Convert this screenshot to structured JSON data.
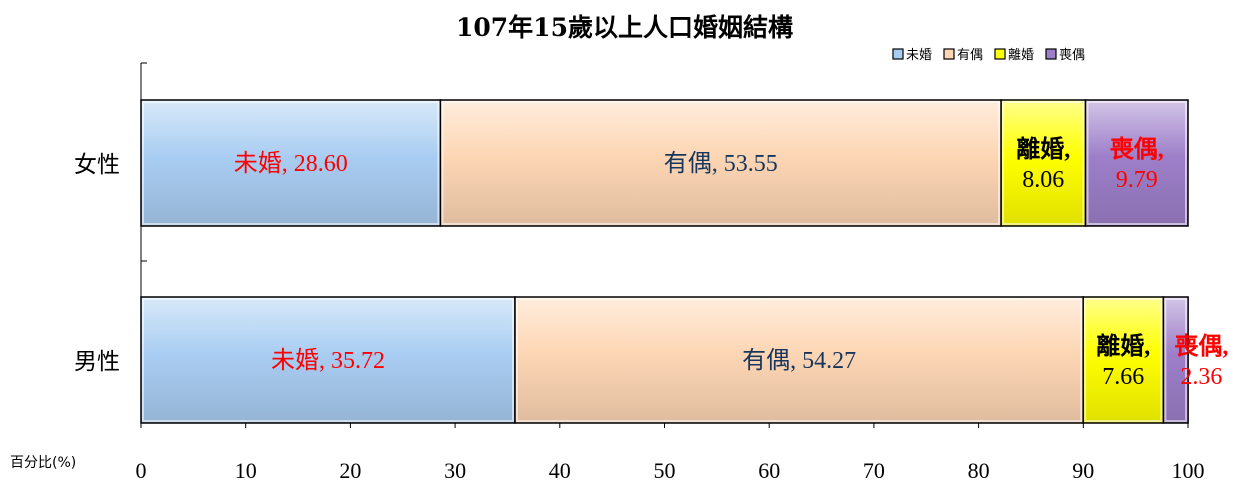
{
  "chart_data": {
    "type": "bar",
    "orientation": "horizontal",
    "stacked": true,
    "title": "107年15歲以上人口婚姻結構",
    "xlabel": "百分比(%)",
    "ylabel": "",
    "xlim": [
      0,
      100
    ],
    "xticks": [
      0,
      10,
      20,
      30,
      40,
      50,
      60,
      70,
      80,
      90,
      100
    ],
    "categories": [
      "女性",
      "男性"
    ],
    "series": [
      {
        "name": "未婚",
        "values": [
          28.6,
          35.72
        ],
        "color": "#a9cdf2",
        "label_color": "#ff0000"
      },
      {
        "name": "有偶",
        "values": [
          53.55,
          54.27
        ],
        "color": "#fdd6b4",
        "label_color": "#17365d"
      },
      {
        "name": "離婚",
        "values": [
          8.06,
          7.66
        ],
        "color": "#ffff00",
        "label_color": "#000000"
      },
      {
        "name": "喪偶",
        "values": [
          9.79,
          2.36
        ],
        "color": "#9d7fc9",
        "label_color": "#ff0000"
      }
    ],
    "data_labels": [
      [
        "未婚, 28.60",
        "有偶, 53.55",
        "離婚,|8.06",
        "喪偶,|9.79"
      ],
      [
        "未婚, 35.72",
        "有偶, 54.27",
        "離婚,|7.66",
        "喪偶,|2.36"
      ]
    ],
    "legend": {
      "position": "top-right",
      "labels": [
        "未婚",
        "有偶",
        "離婚",
        "喪偶"
      ]
    },
    "grid": false
  }
}
